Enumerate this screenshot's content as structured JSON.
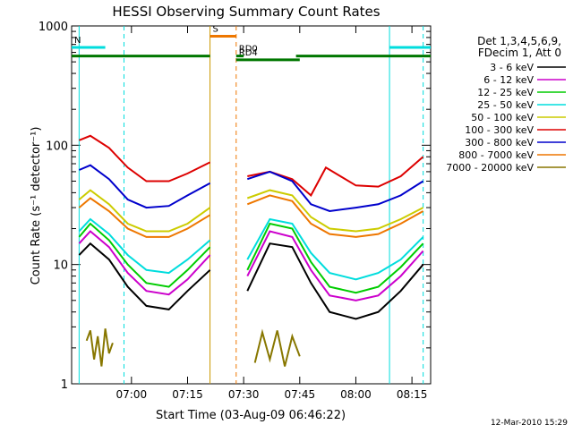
{
  "chart_data": {
    "type": "line",
    "title": "HESSI Observing Summary Count Rates",
    "xlabel": "Start Time (03-Aug-09 06:46:22)",
    "ylabel": "Count Rate (s⁻¹ detector⁻¹)",
    "y_scale": "log",
    "ylim": [
      1,
      1000
    ],
    "xlim_minutes": [
      -2,
      94
    ],
    "x_ticks": [
      {
        "label": "07:00",
        "minute": 14
      },
      {
        "label": "07:15",
        "minute": 29
      },
      {
        "label": "07:30",
        "minute": 44
      },
      {
        "label": "07:45",
        "minute": 59
      },
      {
        "label": "08:00",
        "minute": 74
      },
      {
        "label": "08:15",
        "minute": 89
      }
    ],
    "y_ticks": [
      {
        "label": "1",
        "value": 1
      },
      {
        "label": "10",
        "value": 10
      },
      {
        "label": "100",
        "value": 100
      },
      {
        "label": "1000",
        "value": 1000
      }
    ],
    "grid": false,
    "legend_position": "right",
    "legend_header": [
      "Det 1,3,4,5,6,9,",
      "FDecim 1, Att 0"
    ],
    "series": [
      {
        "name": "3 - 6 keV",
        "color": "#000000",
        "segments": [
          {
            "x": [
              0,
              3,
              8,
              13,
              18,
              24,
              29,
              35
            ],
            "y": [
              12,
              15,
              11,
              6.5,
              4.5,
              4.2,
              6,
              9
            ]
          },
          {
            "x": [
              45,
              51,
              57,
              62,
              67,
              74,
              80,
              86,
              92
            ],
            "y": [
              6,
              15,
              14,
              7,
              4,
              3.5,
              4,
              6,
              10
            ]
          }
        ]
      },
      {
        "name": "6 - 12 keV",
        "color": "#cc00cc",
        "segments": [
          {
            "x": [
              0,
              3,
              8,
              13,
              18,
              24,
              29,
              35
            ],
            "y": [
              15,
              19,
              14,
              8.5,
              6,
              5.6,
              7.5,
              12
            ]
          },
          {
            "x": [
              45,
              51,
              57,
              62,
              67,
              74,
              80,
              86,
              92
            ],
            "y": [
              8,
              19,
              17,
              9,
              5.5,
              5,
              5.5,
              8,
              13
            ]
          }
        ]
      },
      {
        "name": "12 - 25 keV",
        "color": "#00cc00",
        "segments": [
          {
            "x": [
              0,
              3,
              8,
              13,
              18,
              24,
              29,
              35
            ],
            "y": [
              17,
              22,
              16,
              10,
              7,
              6.5,
              9,
              14
            ]
          },
          {
            "x": [
              45,
              51,
              57,
              62,
              67,
              74,
              80,
              86,
              92
            ],
            "y": [
              9,
              22,
              20,
              10.5,
              6.5,
              5.8,
              6.5,
              9.5,
              15
            ]
          }
        ]
      },
      {
        "name": "25 - 50 keV",
        "color": "#00dddd",
        "segments": [
          {
            "x": [
              0,
              3,
              8,
              13,
              18,
              24,
              29,
              35
            ],
            "y": [
              19,
              24,
              18,
              12,
              9,
              8.5,
              11,
              16
            ]
          },
          {
            "x": [
              45,
              51,
              57,
              62,
              67,
              74,
              80,
              86,
              92
            ],
            "y": [
              11,
              24,
              22,
              12.5,
              8.5,
              7.5,
              8.5,
              11,
              17
            ]
          }
        ]
      },
      {
        "name": "50 - 100 keV",
        "color": "#cccc00",
        "segments": [
          {
            "x": [
              0,
              3,
              8,
              13,
              18,
              24,
              29,
              35
            ],
            "y": [
              35,
              42,
              32,
              22,
              19,
              19,
              22,
              30
            ]
          },
          {
            "x": [
              45,
              51,
              57,
              62,
              67,
              74,
              80,
              86,
              92
            ],
            "y": [
              36,
              42,
              38,
              25,
              20,
              19,
              20,
              24,
              30
            ]
          }
        ]
      },
      {
        "name": "100 - 300 keV",
        "color": "#dd0000",
        "segments": [
          {
            "x": [
              0,
              3,
              8,
              13,
              18,
              24,
              29,
              35
            ],
            "y": [
              110,
              120,
              95,
              65,
              50,
              50,
              58,
              72
            ]
          },
          {
            "x": [
              45,
              51,
              57,
              62,
              66,
              74,
              80,
              86,
              92
            ],
            "y": [
              55,
              60,
              52,
              38,
              65,
              46,
              45,
              55,
              80
            ]
          }
        ]
      },
      {
        "name": "300 - 800 keV",
        "color": "#0000cc",
        "segments": [
          {
            "x": [
              0,
              3,
              8,
              13,
              18,
              24,
              29,
              35
            ],
            "y": [
              62,
              68,
              52,
              35,
              30,
              31,
              38,
              48
            ]
          },
          {
            "x": [
              45,
              51,
              57,
              62,
              67,
              74,
              80,
              86,
              92
            ],
            "y": [
              52,
              60,
              50,
              32,
              28,
              30,
              32,
              38,
              50
            ]
          }
        ]
      },
      {
        "name": "800 - 7000 keV",
        "color": "#ee7700",
        "segments": [
          {
            "x": [
              0,
              3,
              8,
              13,
              18,
              24,
              29,
              35
            ],
            "y": [
              30,
              36,
              28,
              20,
              17,
              17,
              20,
              26
            ]
          },
          {
            "x": [
              45,
              51,
              57,
              62,
              67,
              74,
              80,
              86,
              92
            ],
            "y": [
              32,
              38,
              34,
              22,
              18,
              17,
              18,
              22,
              28
            ]
          }
        ]
      },
      {
        "name": "7000 - 20000 keV",
        "color": "#887700",
        "segments": [
          {
            "x": [
              2,
              3,
              4,
              5,
              6,
              7,
              8,
              9
            ],
            "y": [
              2.3,
              2.8,
              1.6,
              2.5,
              1.4,
              2.9,
              1.8,
              2.2
            ]
          },
          {
            "x": [
              47,
              49,
              51,
              53,
              55,
              57,
              59
            ],
            "y": [
              1.5,
              2.7,
              1.6,
              2.8,
              1.4,
              2.5,
              1.7
            ]
          }
        ]
      }
    ],
    "bars": [
      {
        "label": "N",
        "color": "#00dddd",
        "value": 660,
        "segments": [
          [
            -2,
            7
          ],
          [
            83,
            94
          ]
        ]
      },
      {
        "label": "S",
        "color": "#ee7700",
        "value": 820,
        "segments": [
          [
            35,
            42
          ]
        ]
      },
      {
        "label": "",
        "color": "#007700",
        "value": 560,
        "segments": [
          [
            -2,
            35
          ],
          [
            58,
            94
          ]
        ]
      },
      {
        "label": "RD4",
        "color": "#007700",
        "value": 520,
        "segments": [
          [
            42,
            59
          ]
        ]
      },
      {
        "label": "RD0",
        "color": "#007700",
        "value": 560,
        "segments": [
          [
            42,
            44
          ]
        ]
      }
    ],
    "vlines": [
      {
        "x": 0,
        "color": "#00dddd",
        "dashed": false
      },
      {
        "x": 12,
        "color": "#00dddd",
        "dashed": true
      },
      {
        "x": 35,
        "color": "#cc9900",
        "dashed": false
      },
      {
        "x": 42,
        "color": "#ee7700",
        "dashed": true
      },
      {
        "x": 83,
        "color": "#00dddd",
        "dashed": false
      },
      {
        "x": 92,
        "color": "#00dddd",
        "dashed": true
      }
    ],
    "footer": "12-Mar-2010 15:29"
  }
}
